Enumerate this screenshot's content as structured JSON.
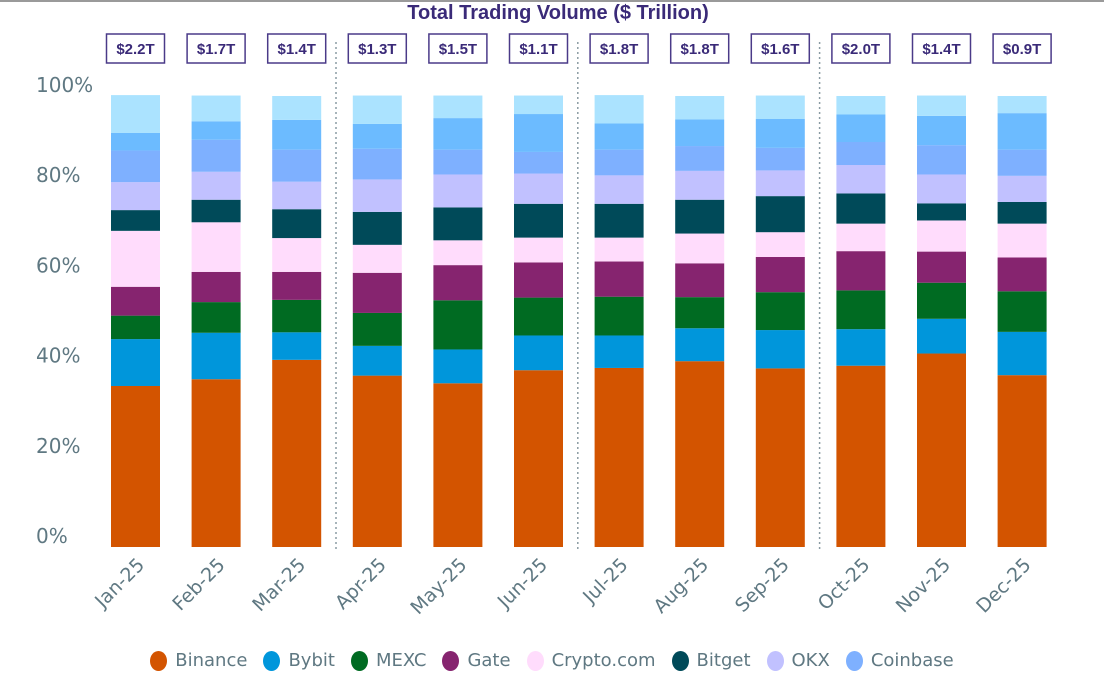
{
  "chart_data": {
    "type": "bar",
    "stacked": true,
    "normalized": true,
    "title": "Total Trading Volume ($ Trillion)",
    "xlabel": "",
    "ylabel": "",
    "ylim": [
      0,
      100
    ],
    "yticks": [
      "0%",
      "20%",
      "40%",
      "60%",
      "80%",
      "100%"
    ],
    "grid": false,
    "legend_position": "bottom",
    "categories": [
      "Jan-25",
      "Feb-25",
      "Mar-25",
      "Apr-25",
      "May-25",
      "Jun-25",
      "Jul-25",
      "Aug-25",
      "Sep-25",
      "Oct-25",
      "Nov-25",
      "Dec-25"
    ],
    "total_volume_labels": [
      "$2.2T",
      "$1.7T",
      "$1.4T",
      "$1.3T",
      "$1.5T",
      "$1.1T",
      "$1.8T",
      "$1.8T",
      "$1.6T",
      "$2.0T",
      "$1.4T",
      "$0.9T"
    ],
    "quarter_dividers_after": [
      "Mar-25",
      "Jun-25",
      "Sep-25"
    ],
    "series": [
      {
        "name": "Binance",
        "color": "#d35400",
        "in_legend": true,
        "values": [
          35.7,
          37.2,
          41.5,
          38.0,
          36.3,
          39.2,
          39.7,
          41.2,
          39.6,
          40.2,
          42.9,
          38.1
        ]
      },
      {
        "name": "Bybit",
        "color": "#0096db",
        "in_legend": true,
        "values": [
          10.4,
          10.3,
          6.1,
          6.6,
          7.5,
          7.7,
          7.2,
          7.3,
          8.5,
          8.1,
          7.7,
          9.6
        ]
      },
      {
        "name": "MEXC",
        "color": "#006b22",
        "in_legend": true,
        "values": [
          5.2,
          6.8,
          7.2,
          7.3,
          10.9,
          8.4,
          8.6,
          6.9,
          8.4,
          8.6,
          8.0,
          9.0
        ]
      },
      {
        "name": "Gate",
        "color": "#86246f",
        "in_legend": true,
        "values": [
          6.4,
          6.7,
          6.2,
          8.9,
          7.8,
          7.8,
          7.8,
          7.5,
          7.8,
          8.7,
          6.9,
          7.5
        ]
      },
      {
        "name": "Crypto.com",
        "color": "#ffdcfc",
        "in_legend": true,
        "values": [
          12.4,
          11.0,
          7.5,
          6.2,
          5.5,
          5.5,
          5.3,
          6.6,
          5.5,
          6.1,
          6.9,
          7.5
        ]
      },
      {
        "name": "Bitget",
        "color": "#004a59",
        "in_legend": true,
        "values": [
          4.6,
          5.0,
          6.4,
          7.3,
          7.3,
          7.5,
          7.5,
          7.5,
          8.0,
          6.7,
          3.8,
          4.8
        ]
      },
      {
        "name": "OKX",
        "color": "#c1c1ff",
        "in_legend": true,
        "values": [
          6.2,
          6.2,
          6.1,
          7.2,
          7.3,
          6.7,
          6.3,
          6.4,
          5.7,
          6.3,
          6.4,
          5.8
        ]
      },
      {
        "name": "Coinbase",
        "color": "#7eb0ff",
        "in_legend": true,
        "values": [
          7.0,
          7.1,
          7.1,
          6.8,
          5.5,
          4.8,
          5.7,
          5.5,
          5.0,
          5.1,
          6.5,
          5.8
        ]
      },
      {
        "name": "Other (unlabeled)",
        "color": "#6cbbff",
        "in_legend": false,
        "values": [
          3.9,
          4.1,
          6.6,
          5.5,
          7.0,
          8.4,
          5.8,
          5.9,
          6.4,
          6.1,
          6.5,
          8.1
        ]
      },
      {
        "name": "Other (unlabeled, top)",
        "color": "#abe3ff",
        "in_legend": false,
        "values": [
          8.4,
          5.7,
          5.3,
          6.3,
          5.0,
          4.1,
          6.3,
          5.2,
          5.2,
          4.1,
          4.5,
          3.8
        ]
      }
    ]
  }
}
